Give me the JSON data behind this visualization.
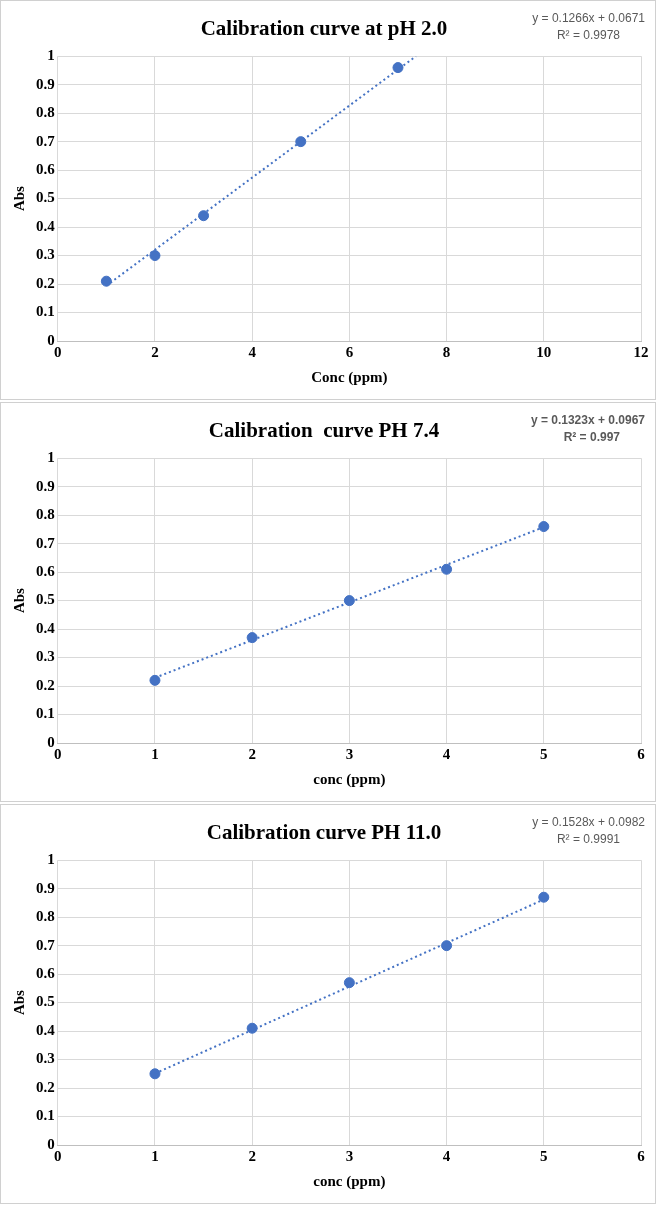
{
  "chart_data": [
    {
      "type": "scatter",
      "title": "Calibration curve at pH 2.0",
      "xlabel": "Conc (ppm)",
      "ylabel": "Abs",
      "xlim": [
        0,
        12
      ],
      "xticks": [
        0,
        2,
        4,
        6,
        8,
        10,
        12
      ],
      "ylim": [
        0,
        1
      ],
      "yticks": [
        0,
        0.1,
        0.2,
        0.3,
        0.4,
        0.5,
        0.6,
        0.7,
        0.8,
        0.9,
        1
      ],
      "grid": true,
      "series": [
        {
          "color": "#4472c4",
          "marker": "circle",
          "x": [
            1,
            2,
            3,
            5,
            7
          ],
          "values": [
            0.21,
            0.3,
            0.44,
            0.7,
            0.96
          ]
        },
        {
          "type": "line",
          "color": "#4472c4",
          "line_style": "dotted",
          "marker": "none",
          "x": [
            1,
            7.37
          ],
          "values": [
            0.194,
            1.0
          ]
        }
      ],
      "annotations": [
        "y = 0.1266x + 0.0671",
        "R² = 0.9978"
      ]
    },
    {
      "type": "scatter",
      "title": "Calibration  curve PH 7.4",
      "xlabel": "conc (ppm)",
      "ylabel": "Abs",
      "xlim": [
        0,
        6
      ],
      "xticks": [
        0,
        1,
        2,
        3,
        4,
        5,
        6
      ],
      "ylim": [
        0,
        1
      ],
      "yticks": [
        0,
        0.1,
        0.2,
        0.3,
        0.4,
        0.5,
        0.6,
        0.7,
        0.8,
        0.9,
        1
      ],
      "grid": true,
      "series": [
        {
          "color": "#4472c4",
          "marker": "circle",
          "x": [
            1,
            2,
            3,
            4,
            5
          ],
          "values": [
            0.22,
            0.37,
            0.5,
            0.61,
            0.76
          ]
        },
        {
          "type": "line",
          "color": "#4472c4",
          "line_style": "dotted",
          "marker": "none",
          "x": [
            1,
            5
          ],
          "values": [
            0.229,
            0.758
          ]
        }
      ],
      "annotations": [
        "y = 0.1323x + 0.0967",
        "R² = 0.997"
      ]
    },
    {
      "type": "scatter",
      "title": "Calibration curve PH 11.0",
      "xlabel": "conc (ppm)",
      "ylabel": "Abs",
      "xlim": [
        0,
        6
      ],
      "xticks": [
        0,
        1,
        2,
        3,
        4,
        5,
        6
      ],
      "ylim": [
        0,
        1
      ],
      "yticks": [
        0,
        0.1,
        0.2,
        0.3,
        0.4,
        0.5,
        0.6,
        0.7,
        0.8,
        0.9,
        1
      ],
      "grid": true,
      "series": [
        {
          "color": "#4472c4",
          "marker": "circle",
          "x": [
            1,
            2,
            3,
            4,
            5
          ],
          "values": [
            0.25,
            0.41,
            0.57,
            0.7,
            0.87
          ]
        },
        {
          "type": "line",
          "color": "#4472c4",
          "line_style": "dotted",
          "marker": "none",
          "x": [
            1,
            5
          ],
          "values": [
            0.251,
            0.862
          ]
        }
      ],
      "annotations": [
        "y = 0.1528x + 0.0982",
        "R² = 0.9991"
      ]
    }
  ]
}
